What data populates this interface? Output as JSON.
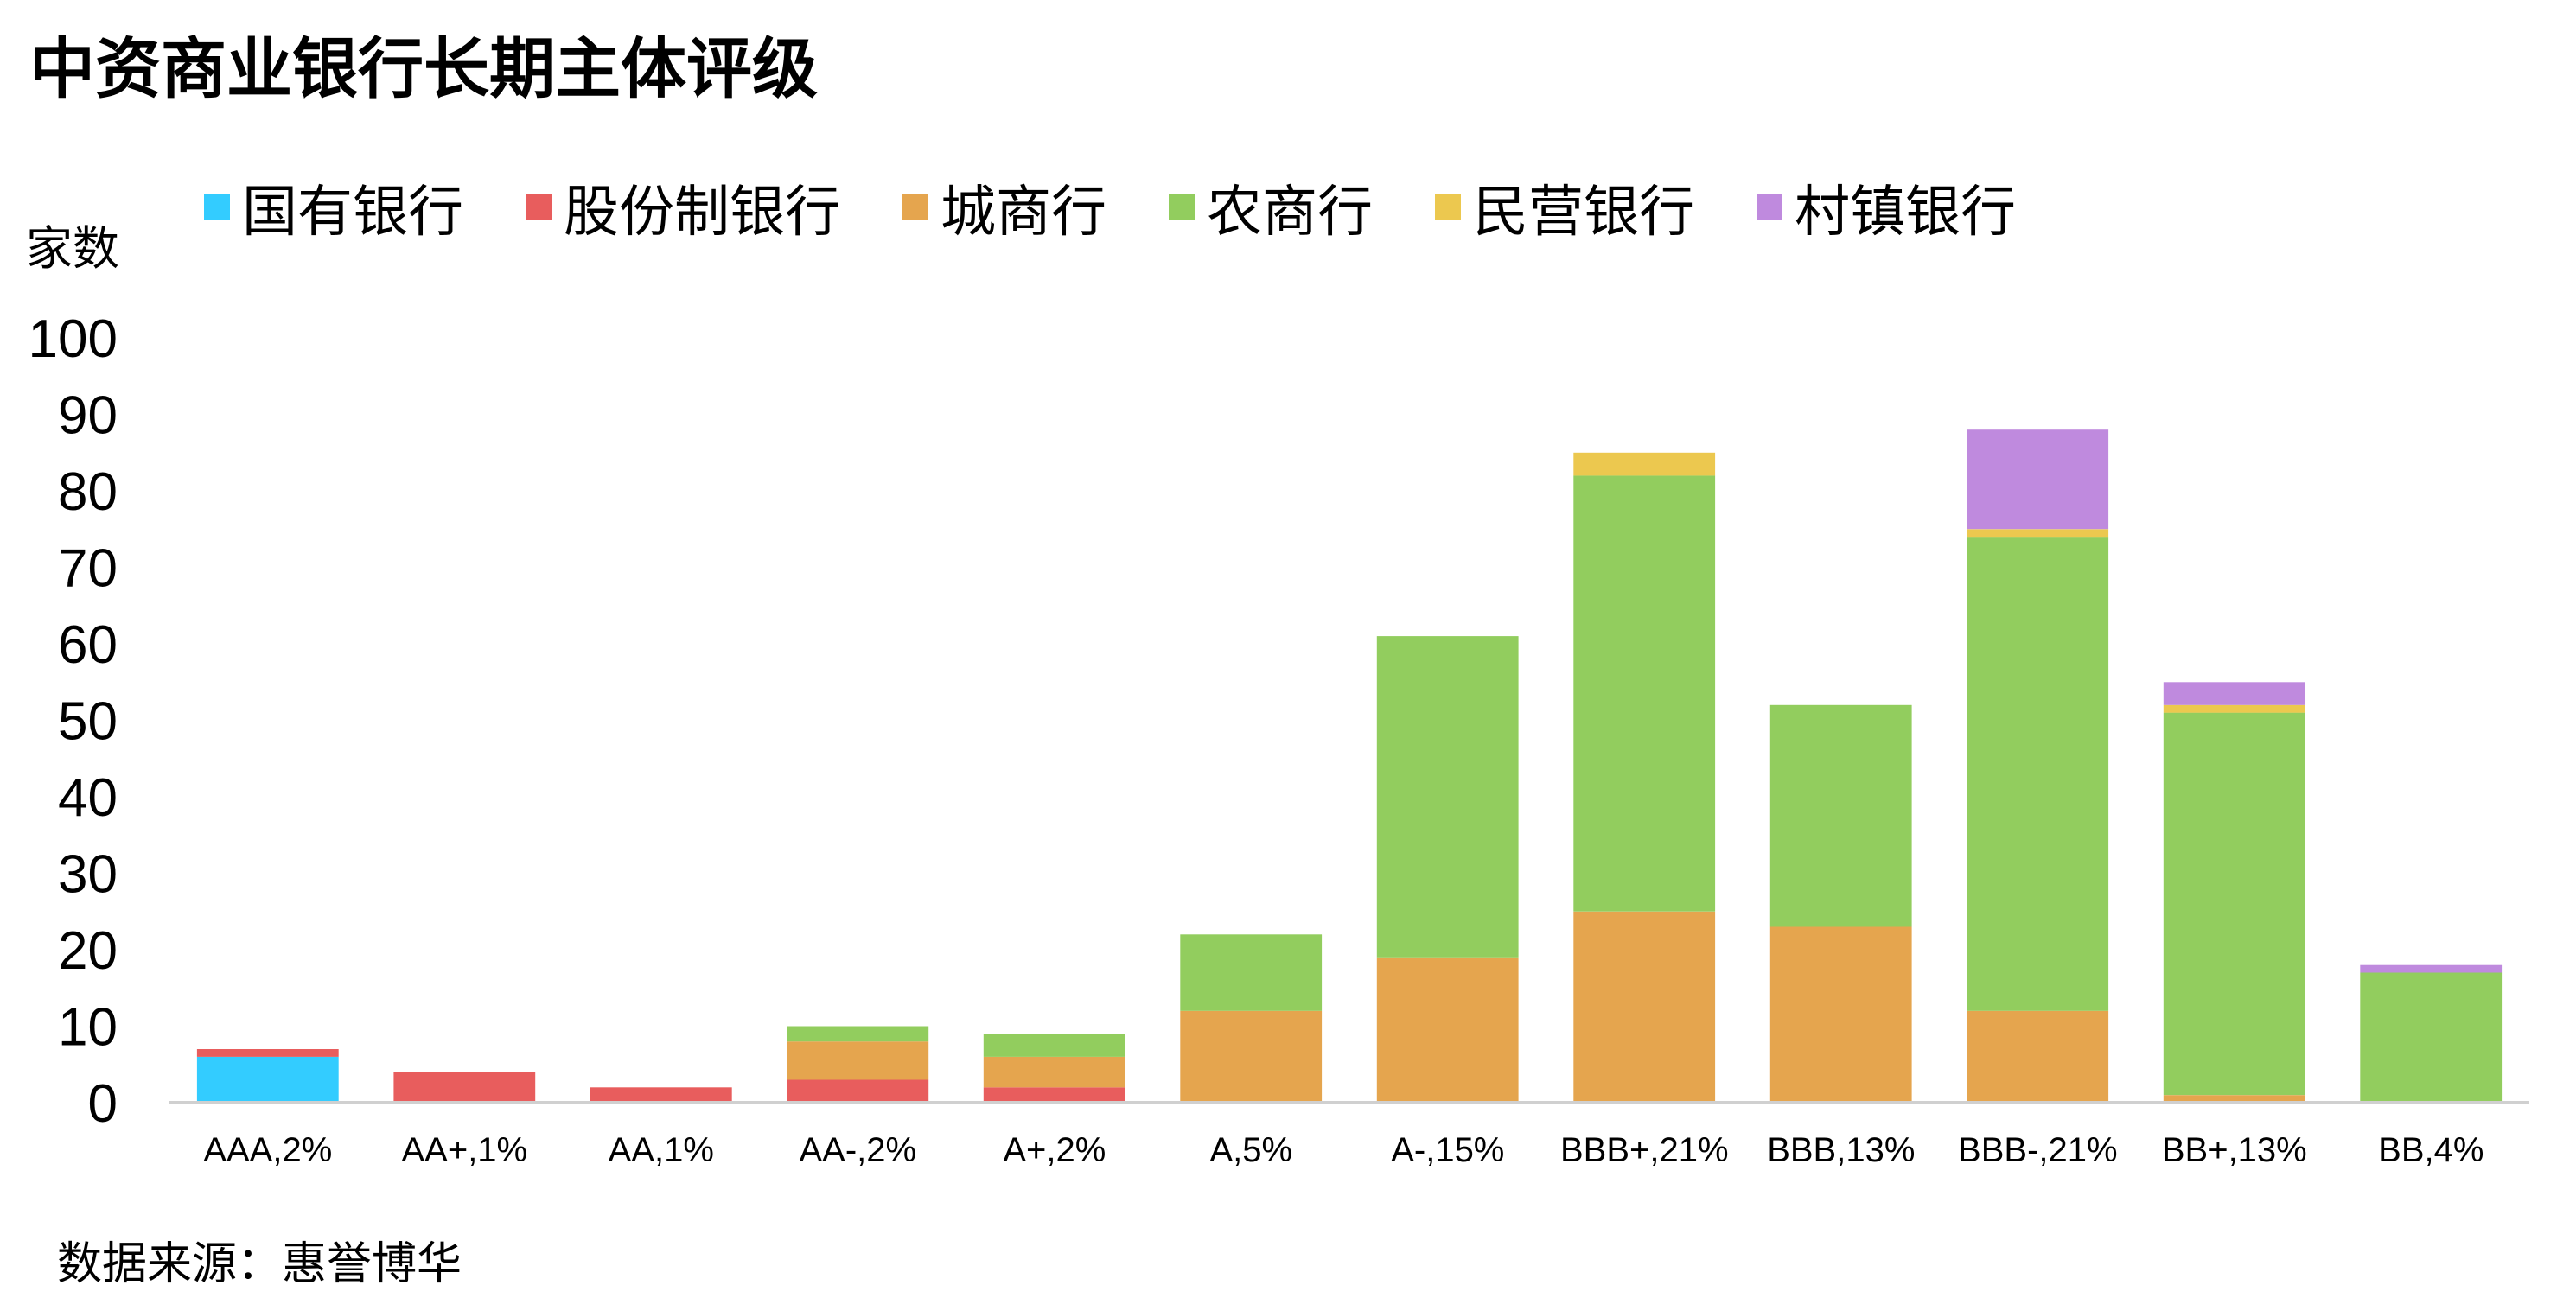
{
  "chart_data": {
    "type": "bar",
    "stacked": true,
    "title": "中资商业银行长期主体评级",
    "ylabel": "家数",
    "xlabel": "",
    "ylim": [
      0,
      100
    ],
    "yticks": [
      0,
      10,
      20,
      30,
      40,
      50,
      60,
      70,
      80,
      90,
      100
    ],
    "grid": false,
    "legend_position": "top",
    "categories": [
      "AAA,2%",
      "AA+,1%",
      "AA,1%",
      "AA-,2%",
      "A+,2%",
      "A,5%",
      "A-,15%",
      "BBB+,21%",
      "BBB,13%",
      "BBB-,21%",
      "BB+,13%",
      "BB,4%"
    ],
    "series": [
      {
        "name": "国有银行",
        "color": "#33ccff",
        "values": [
          6,
          0,
          0,
          0,
          0,
          0,
          0,
          0,
          0,
          0,
          0,
          0
        ]
      },
      {
        "name": "股份制银行",
        "color": "#e85d5d",
        "values": [
          1,
          4,
          2,
          3,
          2,
          0,
          0,
          0,
          0,
          0,
          0,
          0
        ]
      },
      {
        "name": "城商行",
        "color": "#e5a54e",
        "values": [
          0,
          0,
          0,
          5,
          4,
          12,
          19,
          25,
          23,
          12,
          1,
          0
        ]
      },
      {
        "name": "农商行",
        "color": "#92cd5e",
        "values": [
          0,
          0,
          0,
          2,
          3,
          10,
          42,
          57,
          29,
          62,
          50,
          17
        ]
      },
      {
        "name": "民营银行",
        "color": "#ecc84f",
        "values": [
          0,
          0,
          0,
          0,
          0,
          0,
          0,
          3,
          0,
          1,
          1,
          0
        ]
      },
      {
        "name": "村镇银行",
        "color": "#bf8ade",
        "values": [
          0,
          0,
          0,
          0,
          0,
          0,
          0,
          0,
          0,
          13,
          3,
          1
        ]
      }
    ]
  },
  "source_text": "数据来源：惠誉博华"
}
